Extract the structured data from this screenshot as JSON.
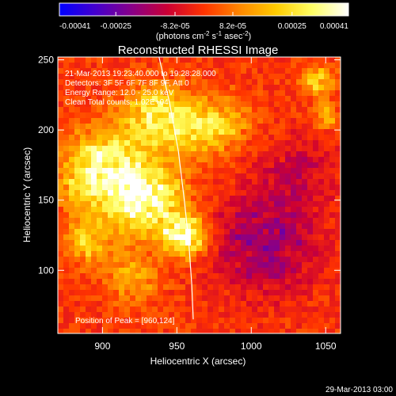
{
  "colorbar": {
    "tick_labels": [
      "-0.00041",
      "-0.00025",
      "-8.2e-05",
      "8.2e-05",
      "0.00025",
      "0.00041"
    ],
    "tick_values": [
      -0.00041,
      -0.00025,
      -8.2e-05,
      8.2e-05,
      0.00025,
      0.00041
    ],
    "range": [
      -0.00041,
      0.00041
    ],
    "unit_label": "(photons cm",
    "unit_exp1": "-2",
    "unit_mid": " s",
    "unit_exp2": "-1",
    "unit_mid2": " asec",
    "unit_exp3": "-2",
    "unit_end": ")",
    "colormap": [
      "#0000ff",
      "#4400cc",
      "#880088",
      "#cc0033",
      "#ff3300",
      "#ff8800",
      "#ffcc00",
      "#ffff66",
      "#ffffff"
    ]
  },
  "chart_data": {
    "type": "heatmap",
    "title": "Reconstructed RHESSI Image",
    "xlabel": "Heliocentric X (arcsec)",
    "ylabel": "Heliocentric Y (arcsec)",
    "xlim": [
      870,
      1060
    ],
    "ylim": [
      55,
      252
    ],
    "x_ticks": [
      900,
      950,
      1000,
      1050
    ],
    "y_ticks": [
      100,
      150,
      200,
      250
    ],
    "grid": false,
    "info_lines": [
      "21-Mar-2013 19:23:40.000 to 19:28:28.000",
      "Detectors: 3F 5F 6F 7F 8F 9F, Att 0",
      "Energy Range: 12.0 - 25.0 keV",
      "Clean    Total counts: 1.02E+04"
    ],
    "peak_label": "Position of Peak = [960,124]",
    "peak": [
      960,
      124
    ],
    "limb_curve": [
      [
        938,
        252
      ],
      [
        945,
        220
      ],
      [
        951,
        185
      ],
      [
        955,
        150
      ],
      [
        958,
        120
      ],
      [
        960,
        90
      ],
      [
        961,
        65
      ]
    ]
  },
  "footer": {
    "timestamp": "29-Mar-2013 03:00"
  }
}
